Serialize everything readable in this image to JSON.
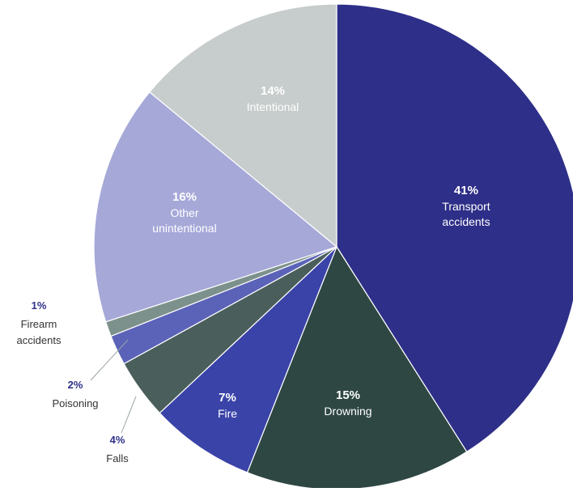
{
  "chart_data": {
    "type": "pie",
    "title": "",
    "slices": [
      {
        "label": "Transport accidents",
        "value": 41,
        "percent_label": "41%",
        "label_lines": [
          "Transport",
          "accidents"
        ],
        "color": "#2e2f88",
        "label_color": "#ffffff",
        "pct_color": "#ffffff",
        "label_placement": "inside"
      },
      {
        "label": "Drowning",
        "value": 15,
        "percent_label": "15%",
        "label_lines": [
          "Drowning"
        ],
        "color": "#2e4743",
        "label_color": "#ffffff",
        "pct_color": "#ffffff",
        "label_placement": "inside"
      },
      {
        "label": "Fire",
        "value": 7,
        "percent_label": "7%",
        "label_lines": [
          "Fire"
        ],
        "color": "#3a43a8",
        "label_color": "#ffffff",
        "pct_color": "#ffffff",
        "label_placement": "inside"
      },
      {
        "label": "Falls",
        "value": 4,
        "percent_label": "4%",
        "label_lines": [
          "Falls"
        ],
        "color": "#4a5f5b",
        "label_color": "#333333",
        "pct_color": "#2e2f88",
        "label_placement": "outside"
      },
      {
        "label": "Poisoning",
        "value": 2,
        "percent_label": "2%",
        "label_lines": [
          "Poisoning"
        ],
        "color": "#5b63b8",
        "label_color": "#333333",
        "pct_color": "#2e2f88",
        "label_placement": "outside"
      },
      {
        "label": "Firearm accidents",
        "value": 1,
        "percent_label": "1%",
        "label_lines": [
          "Firearm",
          "accidents"
        ],
        "color": "#7d918c",
        "label_color": "#333333",
        "pct_color": "#2e2f88",
        "label_placement": "outside"
      },
      {
        "label": "Other unintentional",
        "value": 16,
        "percent_label": "16%",
        "label_lines": [
          "Other",
          "unintentional"
        ],
        "color": "#a6a8d8",
        "label_color": "#ffffff",
        "pct_color": "#ffffff",
        "label_placement": "inside"
      },
      {
        "label": "Intentional",
        "value": 14,
        "percent_label": "14%",
        "label_lines": [
          "Intentional"
        ],
        "color": "#c7cdcc",
        "label_color": "#ffffff",
        "pct_color": "#ffffff",
        "label_placement": "inside"
      }
    ],
    "start_angle_deg": 0,
    "direction": "clockwise",
    "legend": "none"
  }
}
